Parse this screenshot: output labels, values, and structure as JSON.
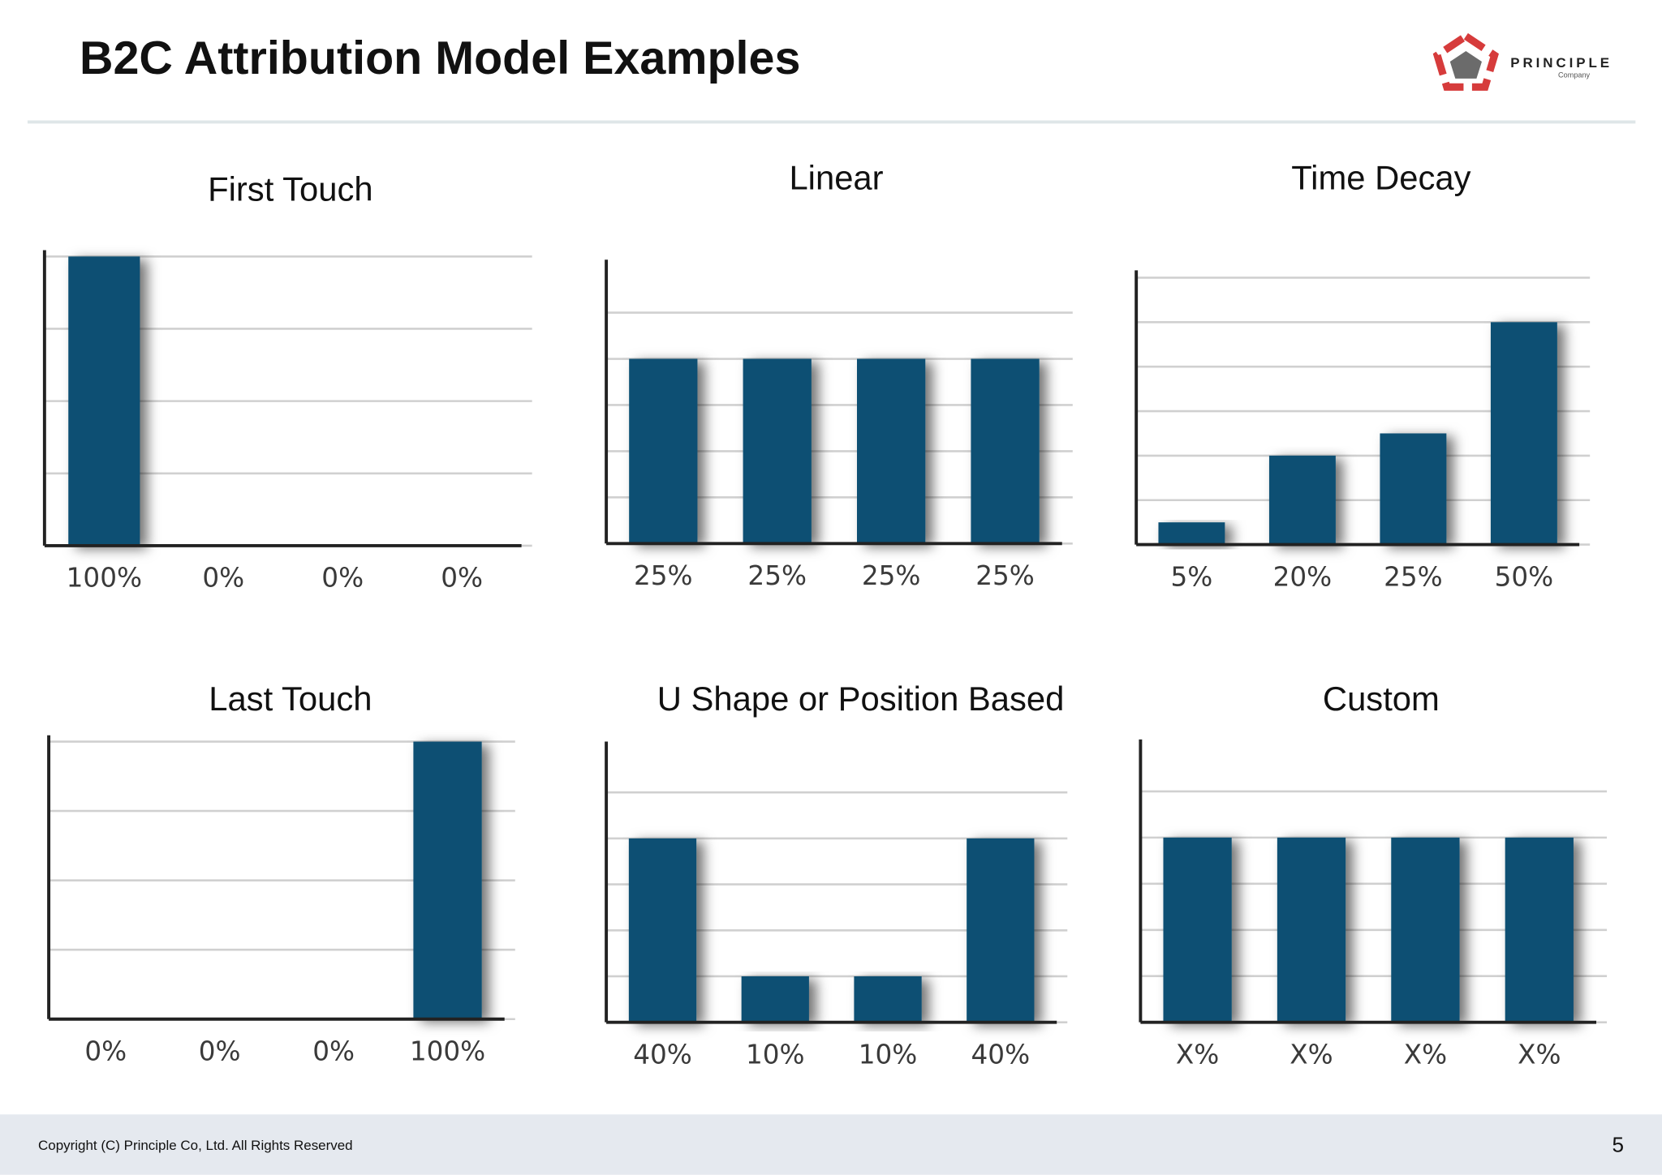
{
  "header": {
    "title": "B2C Attribution Model Examples",
    "logo": "PRINCIPLE",
    "logo_sub": "Company"
  },
  "footer": {
    "copyright": "Copyright (C) Principle Co, Ltd. All Rights Reserved",
    "page": "5"
  },
  "chart_data": [
    {
      "type": "bar",
      "title": "First Touch",
      "values": [
        100,
        0,
        0,
        0
      ],
      "value_labels": [
        "100%",
        "0%",
        "0%",
        "0%"
      ],
      "color": "#0a4f73",
      "ylim": [
        0,
        100
      ],
      "yticks": [
        0,
        25,
        50,
        75,
        100
      ],
      "grid": true
    },
    {
      "type": "bar",
      "title": "Linear",
      "values": [
        25,
        25,
        25,
        25
      ],
      "value_labels": [
        "25%",
        "25%",
        "25%",
        "25%"
      ],
      "color": "#0a4f73",
      "ylim": [
        0,
        31.25
      ],
      "yticks": [
        0,
        6.25,
        12.5,
        18.75,
        25,
        31.25
      ],
      "grid": true
    },
    {
      "type": "bar",
      "title": "Time Decay",
      "values": [
        5,
        20,
        25,
        50
      ],
      "value_labels": [
        "5%",
        "20%",
        "25%",
        "50%"
      ],
      "color": "#0a4f73",
      "ylim": [
        0,
        60
      ],
      "yticks": [
        0,
        10,
        20,
        30,
        40,
        50,
        60
      ],
      "grid": true
    },
    {
      "type": "bar",
      "title": "Last Touch",
      "values": [
        0,
        0,
        0,
        100
      ],
      "value_labels": [
        "0%",
        "0%",
        "0%",
        "100%"
      ],
      "color": "#0a4f73",
      "ylim": [
        0,
        100
      ],
      "yticks": [
        0,
        25,
        50,
        75,
        100
      ],
      "grid": true
    },
    {
      "type": "bar",
      "title": "U Shape or Position Based",
      "values": [
        40,
        10,
        10,
        40
      ],
      "value_labels": [
        "40%",
        "10%",
        "10%",
        "40%"
      ],
      "color": "#0a4f73",
      "ylim": [
        0,
        50
      ],
      "yticks": [
        0,
        10,
        20,
        30,
        40,
        50
      ],
      "grid": true
    },
    {
      "type": "bar",
      "title": "Custom",
      "categories": [
        "X%",
        "X%",
        "X%",
        "X%"
      ],
      "values": [
        40,
        40,
        40,
        40
      ],
      "color": "#0a4f73",
      "ylim": [
        0,
        50
      ],
      "yticks": [
        0,
        10,
        20,
        30,
        40,
        50
      ],
      "grid": true
    }
  ]
}
